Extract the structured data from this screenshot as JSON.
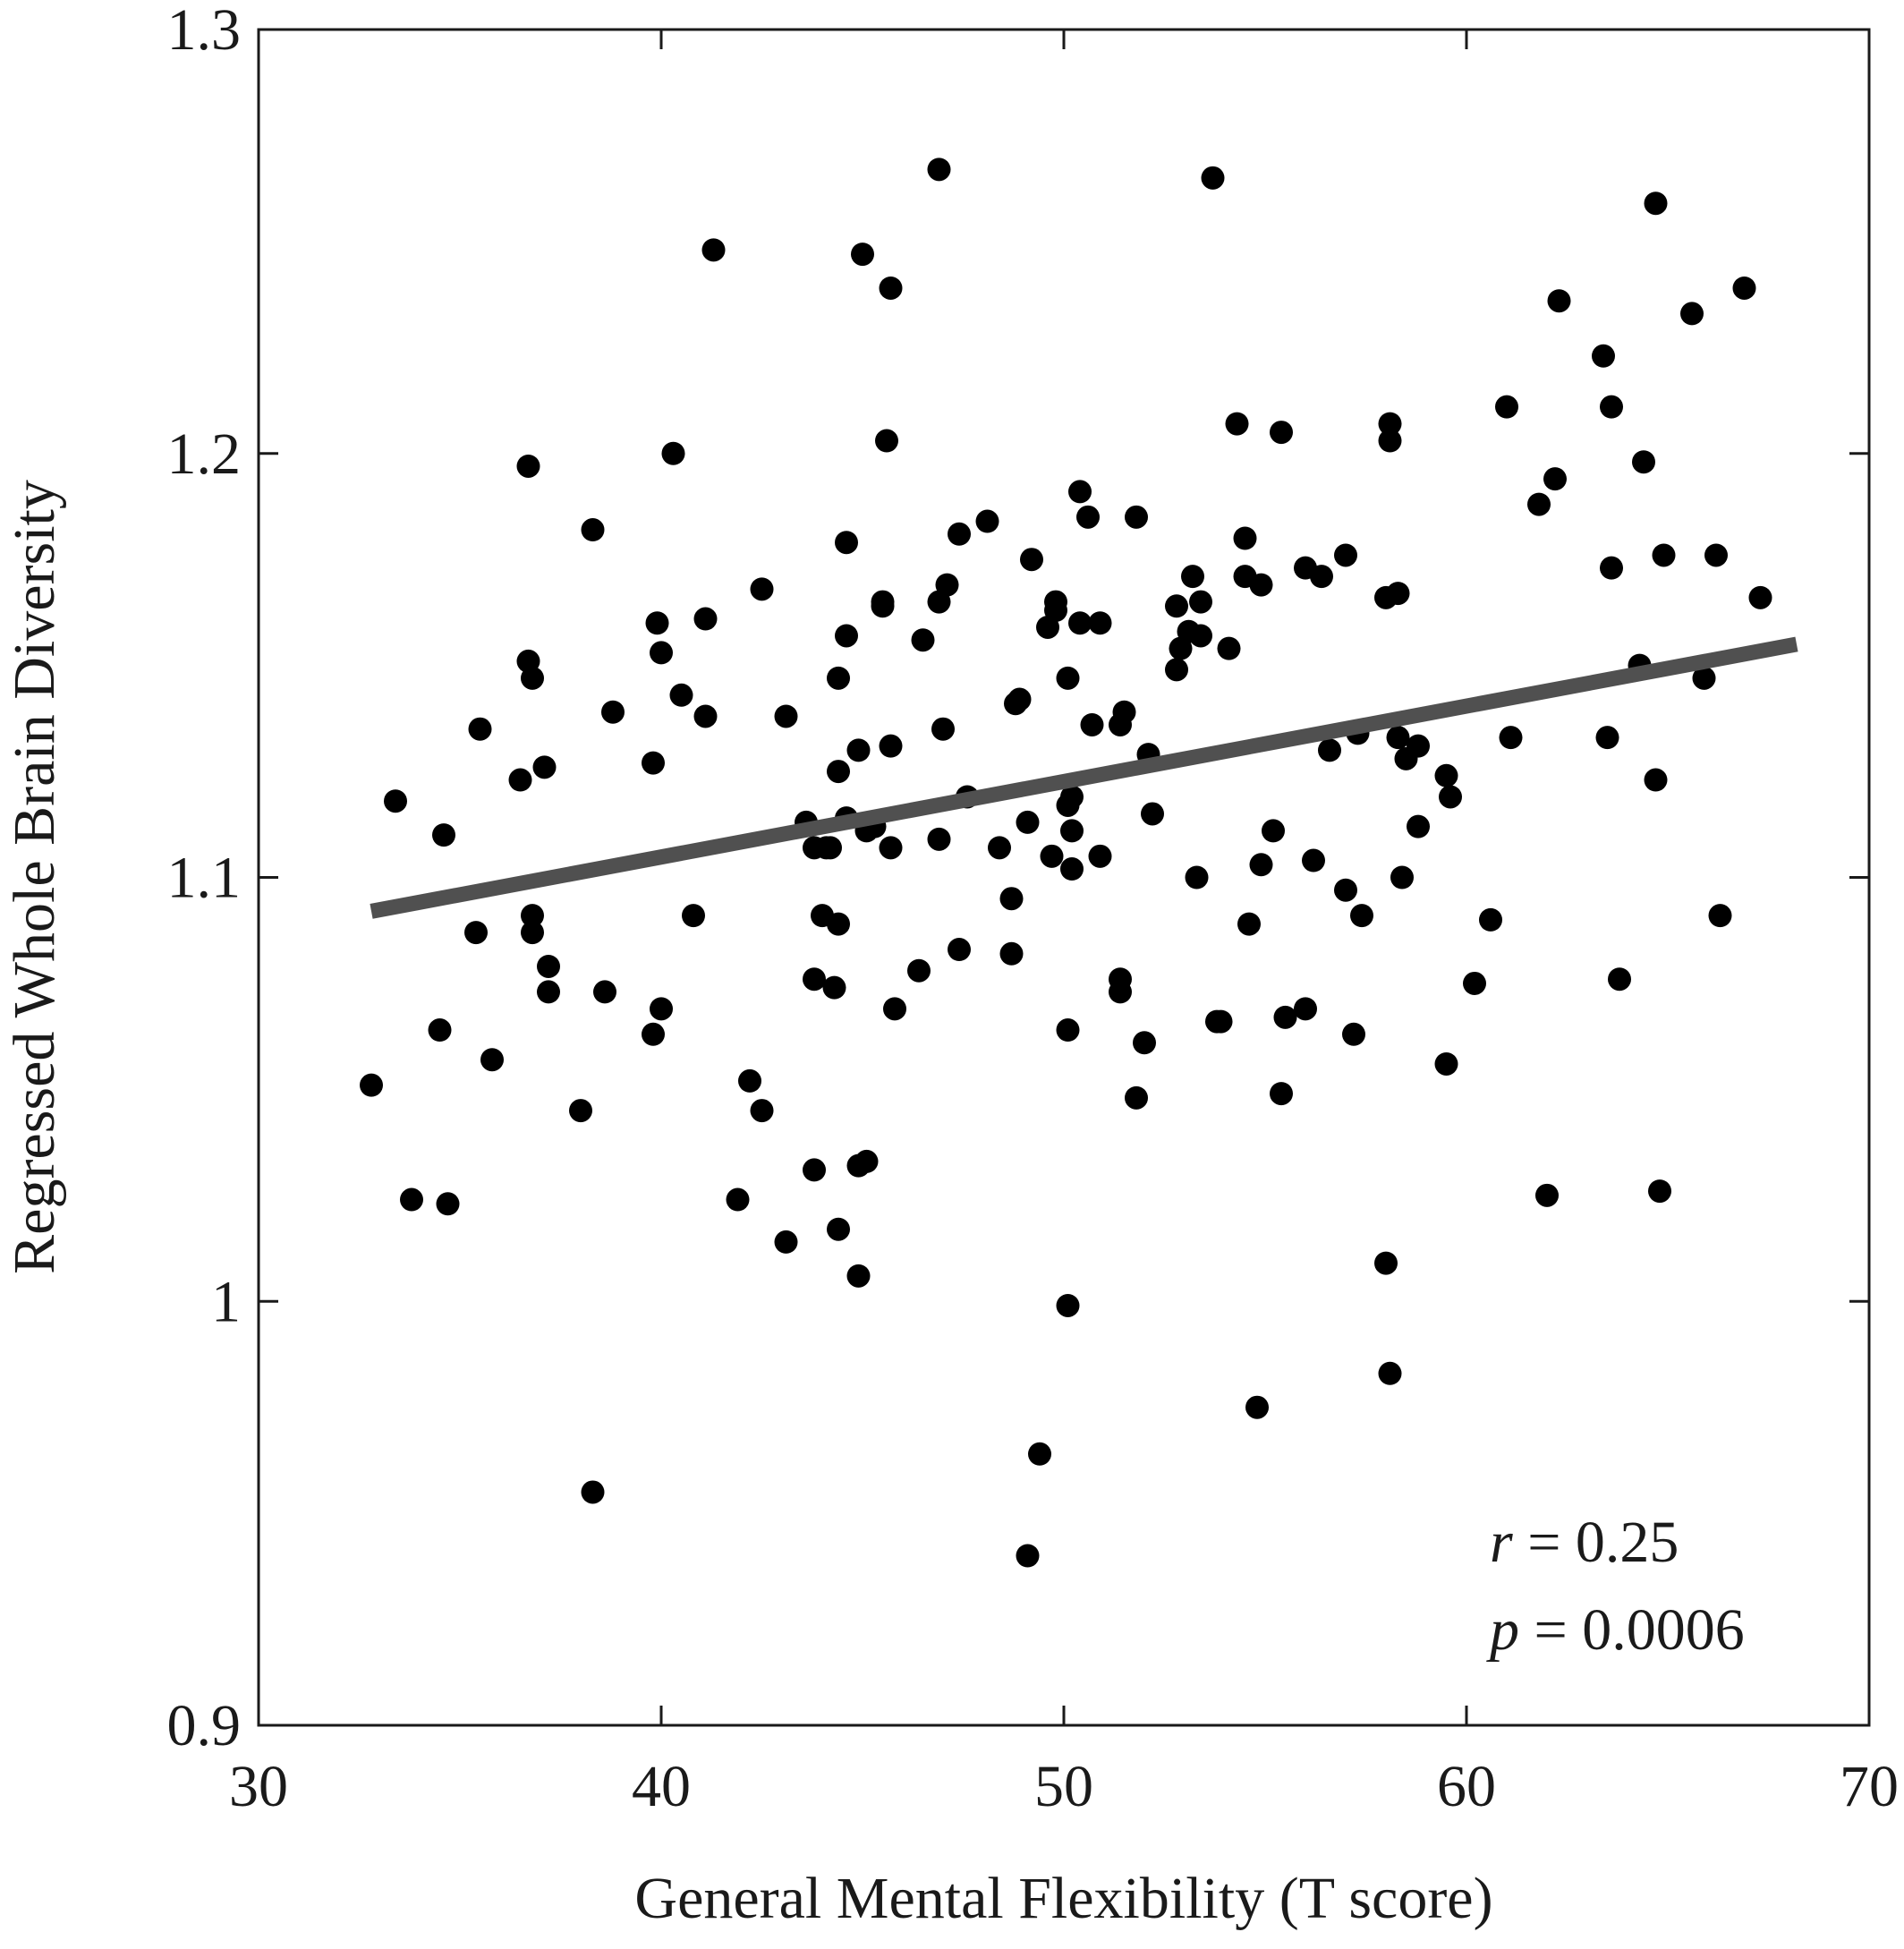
{
  "chart_data": {
    "type": "scatter",
    "xlabel": "General Mental Flexibility (T score)",
    "ylabel": "Regressed Whole Brain Diversity",
    "xlim": [
      30,
      70
    ],
    "ylim": [
      0.9,
      1.3
    ],
    "x_ticks": [
      30,
      40,
      50,
      60,
      70
    ],
    "x_tick_labels": [
      "30",
      "40",
      "50",
      "60",
      "70"
    ],
    "y_ticks": [
      0.9,
      1.0,
      1.1,
      1.2,
      1.3
    ],
    "y_tick_labels": [
      "0.9",
      "1",
      "1.1",
      "1.2",
      "1.3"
    ],
    "grid": false,
    "colors": {
      "points": "#000000",
      "fit_line": "#505050",
      "axes": "#1a1a1a"
    },
    "fit_line": {
      "x": [
        32.8,
        68.2
      ],
      "y": [
        1.092,
        1.155
      ]
    },
    "annotations": [
      {
        "var": "r",
        "text": " = 0.25"
      },
      {
        "var": "p",
        "text": " = 0.0006"
      }
    ],
    "points": [
      [
        32.8,
        1.051
      ],
      [
        33.4,
        1.118
      ],
      [
        33.8,
        1.024
      ],
      [
        34.5,
        1.064
      ],
      [
        34.6,
        1.11
      ],
      [
        34.7,
        1.023
      ],
      [
        35.4,
        1.087
      ],
      [
        35.5,
        1.135
      ],
      [
        35.8,
        1.057
      ],
      [
        36.5,
        1.123
      ],
      [
        36.7,
        1.151
      ],
      [
        36.7,
        1.197
      ],
      [
        36.8,
        1.147
      ],
      [
        36.8,
        1.091
      ],
      [
        36.8,
        1.087
      ],
      [
        37.1,
        1.126
      ],
      [
        37.2,
        1.079
      ],
      [
        37.2,
        1.073
      ],
      [
        38.0,
        1.045
      ],
      [
        38.3,
        1.182
      ],
      [
        38.3,
        0.955
      ],
      [
        38.6,
        1.073
      ],
      [
        38.8,
        1.139
      ],
      [
        39.8,
        1.127
      ],
      [
        39.8,
        1.063
      ],
      [
        39.9,
        1.16
      ],
      [
        40.0,
        1.153
      ],
      [
        40.0,
        1.069
      ],
      [
        40.3,
        1.2
      ],
      [
        40.5,
        1.143
      ],
      [
        40.8,
        1.091
      ],
      [
        41.1,
        1.161
      ],
      [
        41.1,
        1.138
      ],
      [
        41.3,
        1.248
      ],
      [
        41.9,
        1.024
      ],
      [
        42.2,
        1.052
      ],
      [
        42.5,
        1.168
      ],
      [
        42.5,
        1.045
      ],
      [
        43.1,
        1.014
      ],
      [
        43.1,
        1.138
      ],
      [
        43.6,
        1.113
      ],
      [
        43.8,
        1.107
      ],
      [
        43.8,
        1.031
      ],
      [
        43.8,
        1.076
      ],
      [
        44.0,
        1.091
      ],
      [
        44.1,
        1.107
      ],
      [
        44.2,
        1.107
      ],
      [
        44.3,
        1.074
      ],
      [
        44.4,
        1.017
      ],
      [
        44.4,
        1.147
      ],
      [
        44.4,
        1.125
      ],
      [
        44.4,
        1.089
      ],
      [
        44.6,
        1.179
      ],
      [
        44.6,
        1.157
      ],
      [
        44.6,
        1.114
      ],
      [
        44.9,
        1.13
      ],
      [
        44.9,
        1.032
      ],
      [
        44.9,
        1.006
      ],
      [
        45.0,
        1.247
      ],
      [
        45.1,
        1.033
      ],
      [
        45.1,
        1.111
      ],
      [
        45.3,
        1.112
      ],
      [
        45.5,
        1.164
      ],
      [
        45.5,
        1.165
      ],
      [
        45.6,
        1.203
      ],
      [
        45.7,
        1.131
      ],
      [
        45.7,
        1.239
      ],
      [
        45.7,
        1.107
      ],
      [
        45.8,
        1.069
      ],
      [
        46.4,
        1.078
      ],
      [
        46.5,
        1.156
      ],
      [
        46.9,
        1.109
      ],
      [
        46.9,
        1.165
      ],
      [
        46.9,
        1.267
      ],
      [
        47.0,
        1.135
      ],
      [
        47.1,
        1.169
      ],
      [
        47.4,
        1.181
      ],
      [
        47.4,
        1.083
      ],
      [
        47.6,
        1.119
      ],
      [
        48.1,
        1.184
      ],
      [
        48.4,
        1.107
      ],
      [
        48.7,
        1.095
      ],
      [
        48.7,
        1.082
      ],
      [
        48.8,
        1.141
      ],
      [
        48.9,
        1.142
      ],
      [
        49.1,
        1.113
      ],
      [
        49.1,
        0.94
      ],
      [
        49.2,
        1.175
      ],
      [
        49.4,
        0.964
      ],
      [
        49.6,
        1.159
      ],
      [
        49.7,
        1.105
      ],
      [
        49.8,
        1.165
      ],
      [
        49.8,
        1.163
      ],
      [
        50.1,
        1.147
      ],
      [
        50.1,
        1.117
      ],
      [
        50.1,
        1.064
      ],
      [
        50.1,
        0.999
      ],
      [
        50.2,
        1.119
      ],
      [
        50.2,
        1.111
      ],
      [
        50.2,
        1.102
      ],
      [
        50.4,
        1.191
      ],
      [
        50.4,
        1.16
      ],
      [
        50.6,
        1.185
      ],
      [
        50.7,
        1.136
      ],
      [
        50.9,
        1.16
      ],
      [
        50.9,
        1.105
      ],
      [
        51.4,
        1.076
      ],
      [
        51.4,
        1.073
      ],
      [
        51.4,
        1.136
      ],
      [
        51.5,
        1.139
      ],
      [
        51.8,
        1.185
      ],
      [
        51.8,
        1.048
      ],
      [
        52.0,
        1.061
      ],
      [
        52.1,
        1.129
      ],
      [
        52.2,
        1.115
      ],
      [
        52.8,
        1.164
      ],
      [
        52.8,
        1.149
      ],
      [
        52.9,
        1.154
      ],
      [
        53.1,
        1.158
      ],
      [
        53.2,
        1.171
      ],
      [
        53.3,
        1.1
      ],
      [
        53.4,
        1.157
      ],
      [
        53.4,
        1.165
      ],
      [
        53.7,
        1.265
      ],
      [
        53.8,
        1.066
      ],
      [
        53.9,
        1.066
      ],
      [
        54.1,
        1.154
      ],
      [
        54.3,
        1.207
      ],
      [
        54.5,
        1.18
      ],
      [
        54.5,
        1.171
      ],
      [
        54.6,
        1.089
      ],
      [
        54.8,
        0.975
      ],
      [
        54.9,
        1.103
      ],
      [
        54.9,
        1.169
      ],
      [
        55.2,
        1.111
      ],
      [
        55.4,
        1.205
      ],
      [
        55.4,
        1.049
      ],
      [
        55.5,
        1.067
      ],
      [
        56.0,
        1.069
      ],
      [
        56.0,
        1.173
      ],
      [
        56.2,
        1.104
      ],
      [
        56.4,
        1.171
      ],
      [
        56.6,
        1.13
      ],
      [
        57.0,
        1.097
      ],
      [
        57.0,
        1.176
      ],
      [
        57.2,
        1.063
      ],
      [
        57.3,
        1.134
      ],
      [
        57.4,
        1.091
      ],
      [
        58.0,
        1.166
      ],
      [
        58.0,
        1.009
      ],
      [
        58.1,
        1.207
      ],
      [
        58.1,
        1.203
      ],
      [
        58.1,
        0.983
      ],
      [
        58.3,
        1.167
      ],
      [
        58.3,
        1.133
      ],
      [
        58.4,
        1.1
      ],
      [
        58.5,
        1.128
      ],
      [
        58.8,
        1.131
      ],
      [
        58.8,
        1.112
      ],
      [
        59.5,
        1.056
      ],
      [
        59.5,
        1.124
      ],
      [
        59.6,
        1.119
      ],
      [
        60.2,
        1.075
      ],
      [
        60.6,
        1.09
      ],
      [
        61.0,
        1.211
      ],
      [
        61.1,
        1.133
      ],
      [
        61.8,
        1.188
      ],
      [
        62.0,
        1.025
      ],
      [
        62.2,
        1.194
      ],
      [
        62.3,
        1.236
      ],
      [
        63.4,
        1.223
      ],
      [
        63.5,
        1.133
      ],
      [
        63.6,
        1.211
      ],
      [
        63.6,
        1.173
      ],
      [
        63.8,
        1.076
      ],
      [
        64.3,
        1.15
      ],
      [
        64.4,
        1.198
      ],
      [
        64.7,
        1.259
      ],
      [
        64.7,
        1.123
      ],
      [
        64.8,
        1.026
      ],
      [
        64.9,
        1.176
      ],
      [
        65.6,
        1.233
      ],
      [
        65.9,
        1.147
      ],
      [
        66.2,
        1.176
      ],
      [
        66.3,
        1.091
      ],
      [
        66.9,
        1.239
      ],
      [
        67.3,
        1.166
      ]
    ]
  }
}
